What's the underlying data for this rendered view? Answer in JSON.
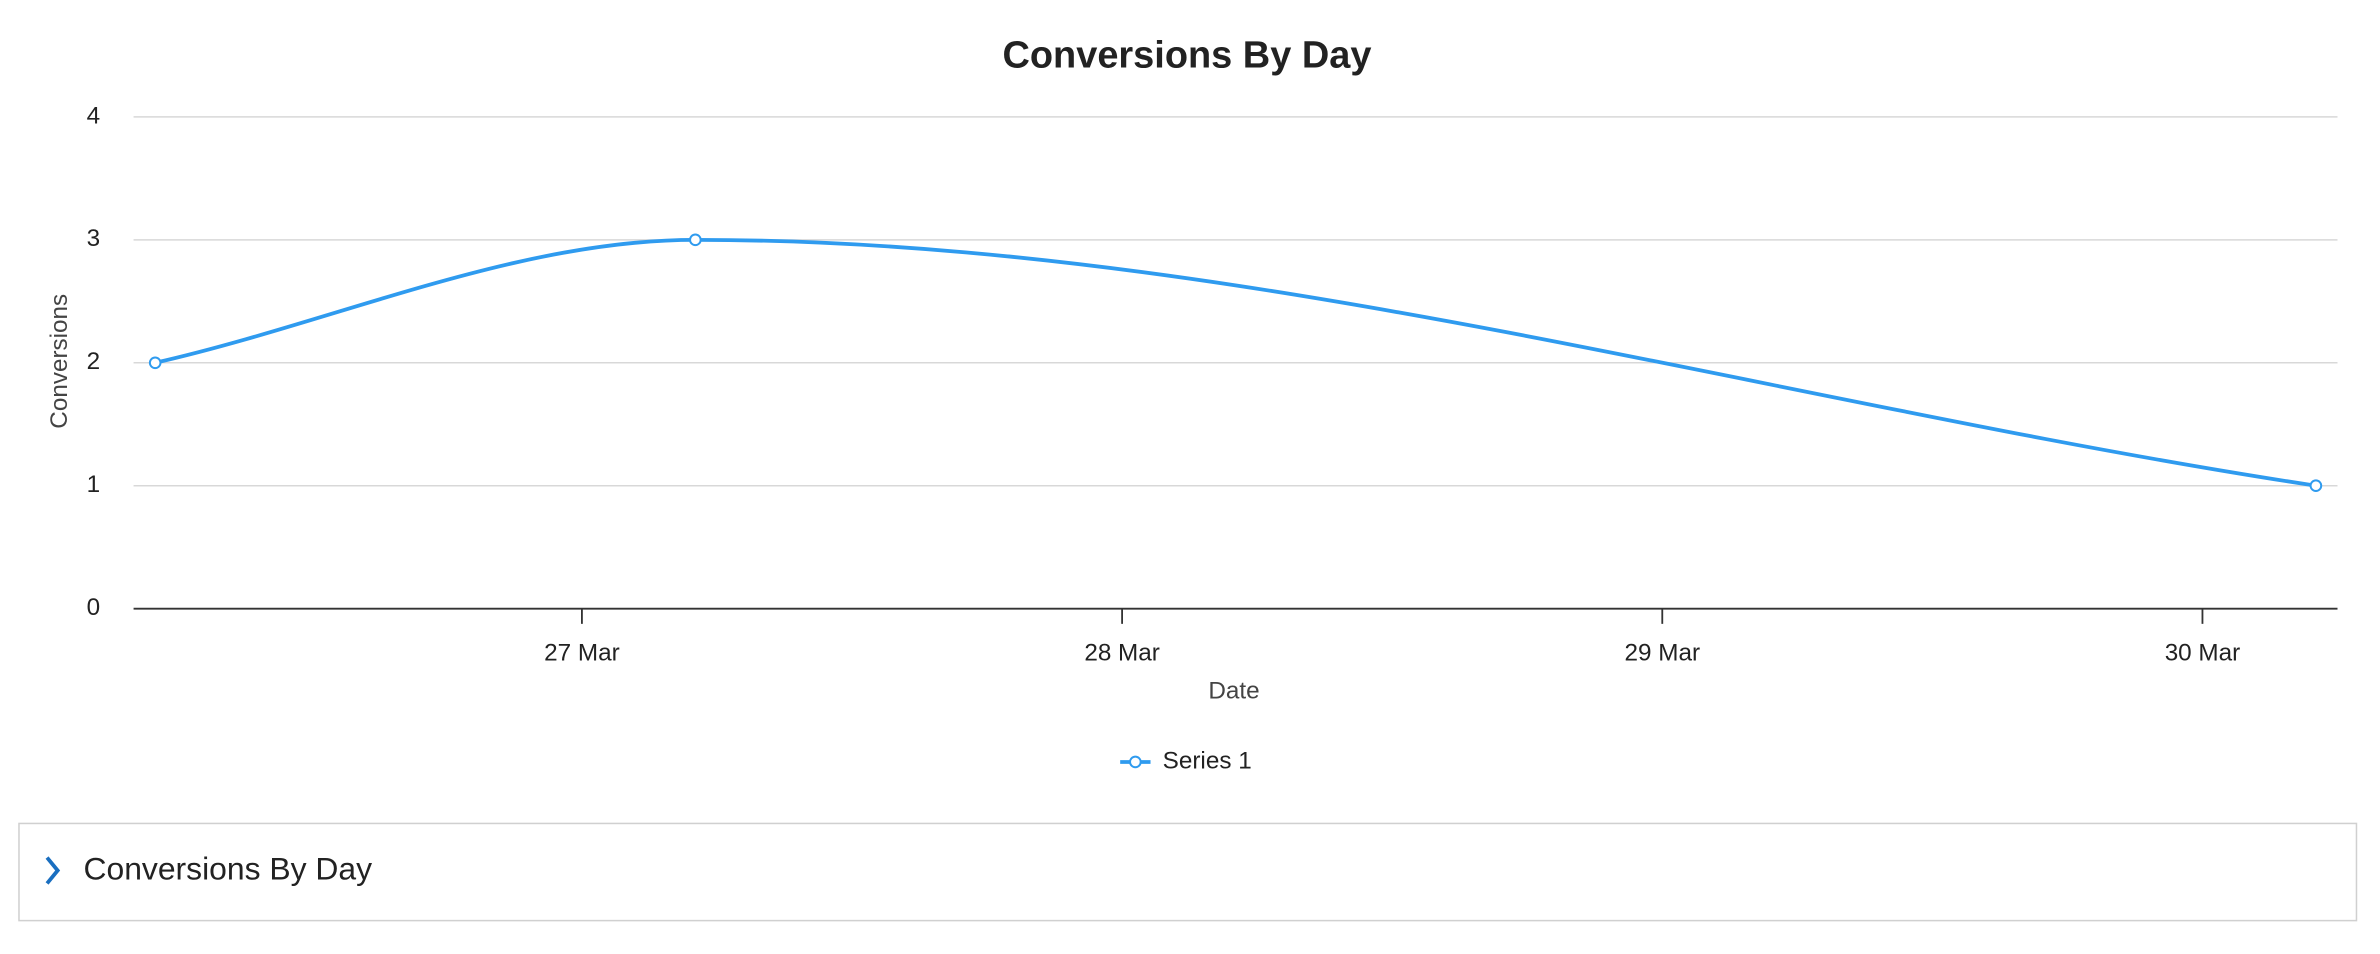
{
  "chart_data": {
    "type": "line",
    "title": "Conversions By Day",
    "x_label": "Date",
    "y_label": "Conversions",
    "x": [
      26.21,
      27.21,
      30.21
    ],
    "xlim": [
      26.17,
      30.25
    ],
    "xticks": [
      {
        "value": 27,
        "label": "27 Mar"
      },
      {
        "value": 28,
        "label": "28 Mar"
      },
      {
        "value": 29,
        "label": "29 Mar"
      },
      {
        "value": 30,
        "label": "30 Mar"
      }
    ],
    "ylim": [
      0,
      4
    ],
    "yticks": [
      0,
      1,
      2,
      3,
      4
    ],
    "grid": true,
    "legend": "bottom",
    "series": [
      {
        "name": "Series 1",
        "color": "#2f9bef",
        "values": [
          2,
          3,
          1
        ]
      }
    ]
  },
  "panel": {
    "title": "Conversions By Day"
  }
}
